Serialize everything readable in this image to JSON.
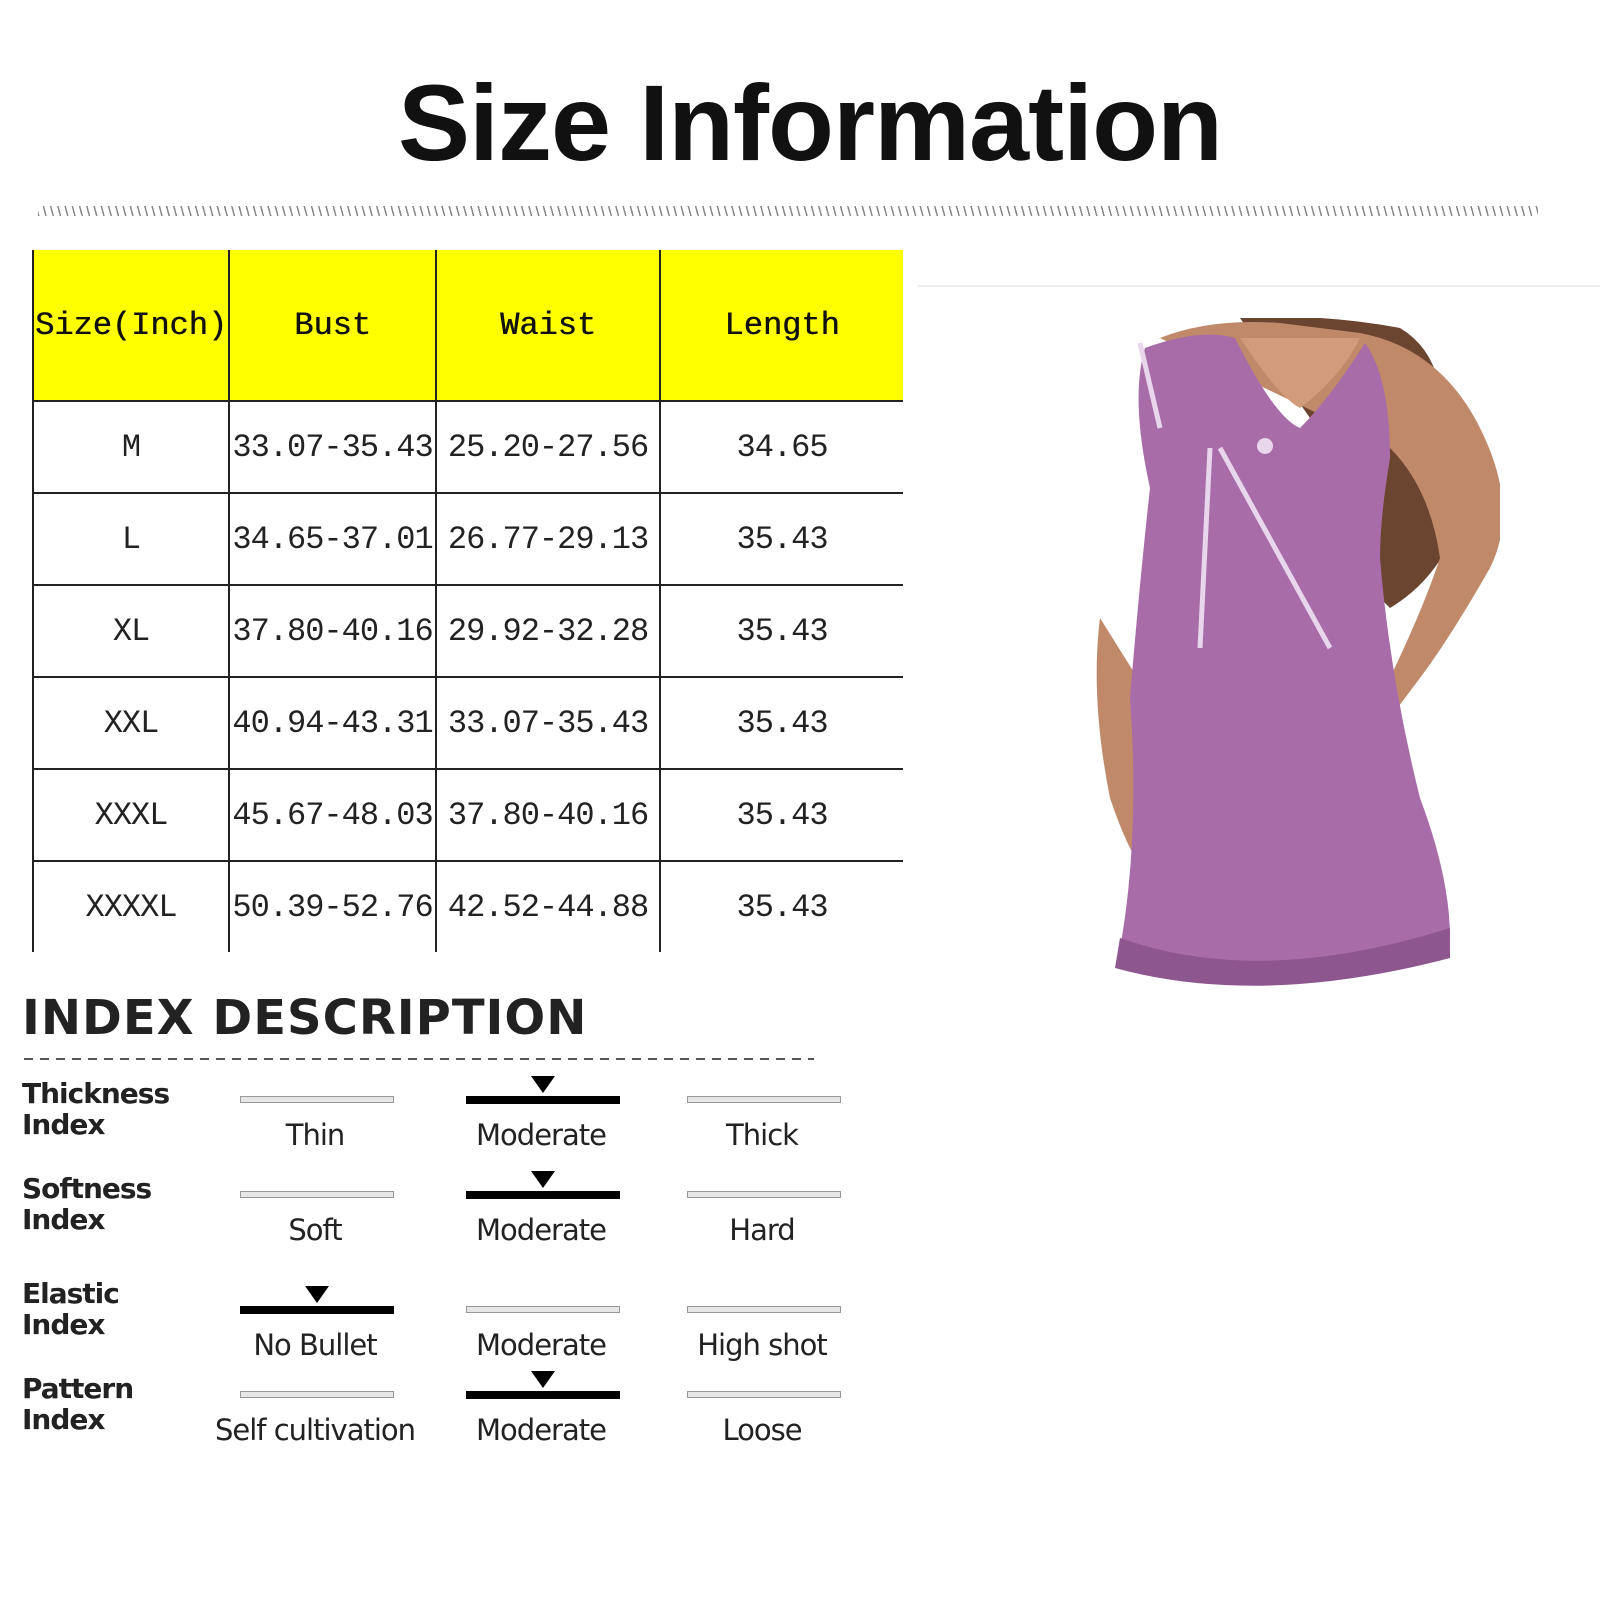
{
  "title": "Size Information",
  "size_table": {
    "headers": [
      "Size(Inch)",
      "Bust",
      "Waist",
      "Length"
    ],
    "rows": [
      [
        "M",
        "33.07-35.43",
        "25.20-27.56",
        "34.65"
      ],
      [
        "L",
        "34.65-37.01",
        "26.77-29.13",
        "35.43"
      ],
      [
        "XL",
        "37.80-40.16",
        "29.92-32.28",
        "35.43"
      ],
      [
        "XXL",
        "40.94-43.31",
        "33.07-35.43",
        "35.43"
      ],
      [
        "XXXL",
        "45.67-48.03",
        "37.80-40.16",
        "35.43"
      ],
      [
        "XXXXL",
        "50.39-52.76",
        "42.52-44.88",
        "35.43"
      ]
    ],
    "header_color": "#ffff00"
  },
  "product_image": {
    "color": "#a86ca8"
  },
  "index": {
    "title": "INDEX DESCRIPTION",
    "rows": [
      {
        "label_1": "Thickness",
        "label_2": "Index",
        "options": [
          "Thin",
          "Moderate",
          "Thick"
        ],
        "selected": 1
      },
      {
        "label_1": "Softness",
        "label_2": "Index",
        "options": [
          "Soft",
          "Moderate",
          "Hard"
        ],
        "selected": 1
      },
      {
        "label_1": "Elastic",
        "label_2": "Index",
        "options": [
          "No Bullet",
          "Moderate",
          "High shot"
        ],
        "selected": 0
      },
      {
        "label_1": "Pattern",
        "label_2": "Index",
        "options": [
          "Self cultivation",
          "Moderate",
          "Loose"
        ],
        "selected": 1
      }
    ]
  }
}
